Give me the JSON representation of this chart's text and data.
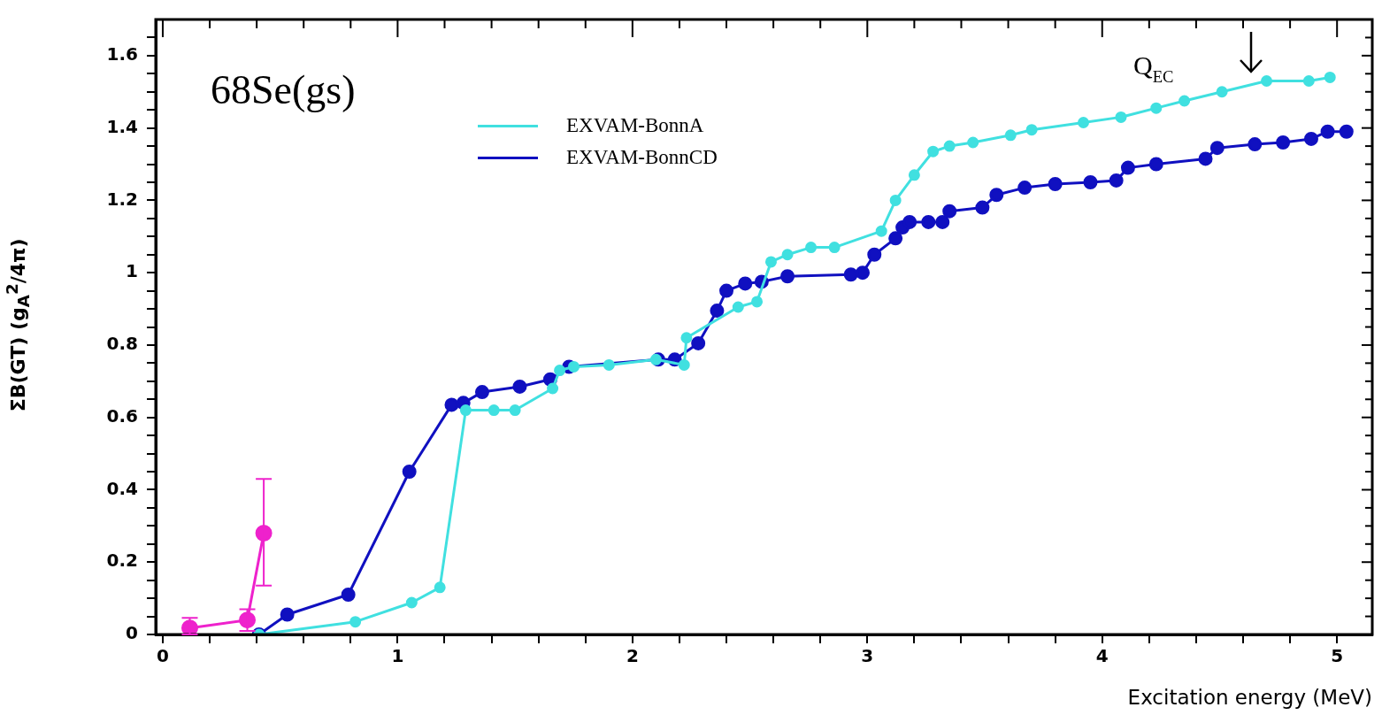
{
  "chart_data": {
    "type": "line",
    "xlabel": "Excitation energy (MeV)",
    "ylabel": "ΣB(GT) (g$_{A}$$^{2}$/4π)",
    "annotations": [
      "68Se(gs)",
      "Q$_{EC}$"
    ],
    "xlim": [
      -0.03,
      5.15
    ],
    "ylim": [
      0,
      1.7
    ],
    "xticks": [
      0,
      {
        "value": 0.2,
        "label": null
      },
      {
        "value": 0.4,
        "label": null
      },
      {
        "value": 0.6,
        "label": null
      },
      {
        "value": 0.8,
        "label": null
      },
      1,
      {
        "value": 1.2,
        "label": null
      },
      {
        "value": 1.4,
        "label": null
      },
      {
        "value": 1.6,
        "label": null
      },
      {
        "value": 1.8,
        "label": null
      },
      2,
      {
        "value": 2.2,
        "label": null
      },
      {
        "value": 2.4,
        "label": null
      },
      {
        "value": 2.6,
        "label": null
      },
      {
        "value": 2.8,
        "label": null
      },
      3,
      {
        "value": 3.2,
        "label": null
      },
      {
        "value": 3.4,
        "label": null
      },
      {
        "value": 3.6,
        "label": null
      },
      {
        "value": 3.8,
        "label": null
      },
      4,
      {
        "value": 4.2,
        "label": null
      },
      {
        "value": 4.4,
        "label": null
      },
      {
        "value": 4.6,
        "label": null
      },
      {
        "value": 4.8,
        "label": null
      },
      5
    ],
    "yticks": [
      0,
      {
        "value": 0.05,
        "label": null
      },
      {
        "value": 0.1,
        "label": null
      },
      {
        "value": 0.15,
        "label": null
      },
      0.2,
      {
        "value": 0.25,
        "label": null
      },
      {
        "value": 0.3,
        "label": null
      },
      {
        "value": 0.35,
        "label": null
      },
      0.4,
      {
        "value": 0.45,
        "label": null
      },
      {
        "value": 0.5,
        "label": null
      },
      {
        "value": 0.55,
        "label": null
      },
      0.6,
      {
        "value": 0.65,
        "label": null
      },
      {
        "value": 0.7,
        "label": null
      },
      {
        "value": 0.75,
        "label": null
      },
      0.8,
      {
        "value": 0.85,
        "label": null
      },
      {
        "value": 0.9,
        "label": null
      },
      {
        "value": 0.95,
        "label": null
      },
      1,
      {
        "value": 1.05,
        "label": null
      },
      {
        "value": 1.1,
        "label": null
      },
      {
        "value": 1.15,
        "label": null
      },
      1.2,
      {
        "value": 1.25,
        "label": null
      },
      {
        "value": 1.3,
        "label": null
      },
      {
        "value": 1.35,
        "label": null
      },
      1.4,
      {
        "value": 1.45,
        "label": null
      },
      {
        "value": 1.5,
        "label": null
      },
      {
        "value": 1.55,
        "label": null
      },
      1.6,
      {
        "value": 1.65,
        "label": null
      }
    ],
    "grid": false,
    "legend": "top",
    "marker": "circle",
    "line_style": "solid",
    "series": [
      {
        "name": "EXVAM-BonnA",
        "color": "#40e0e0",
        "x": [
          0.41,
          0.82,
          1.06,
          1.18,
          1.29,
          1.41,
          1.5,
          1.66,
          1.69,
          1.75,
          1.9,
          2.1,
          2.22,
          2.23,
          2.45,
          2.53,
          2.59,
          2.66,
          2.76,
          2.86,
          3.06,
          3.12,
          3.2,
          3.28,
          3.35,
          3.45,
          3.61,
          3.7,
          3.92,
          4.08,
          4.23,
          4.35,
          4.51,
          4.7,
          4.88,
          4.97
        ],
        "values": [
          0,
          0.035,
          0.088,
          0.13,
          0.62,
          0.62,
          0.62,
          0.68,
          0.73,
          0.74,
          0.745,
          0.76,
          0.745,
          0.82,
          0.905,
          0.92,
          1.03,
          1.05,
          1.07,
          1.07,
          1.115,
          1.2,
          1.27,
          1.335,
          1.35,
          1.36,
          1.38,
          1.395,
          1.415,
          1.43,
          1.455,
          1.475,
          1.5,
          1.53,
          1.53,
          1.54
        ]
      },
      {
        "name": "EXVAM-BonnCD",
        "color": "#1010c0",
        "x": [
          0.41,
          0.53,
          0.79,
          1.05,
          1.23,
          1.28,
          1.36,
          1.52,
          1.65,
          1.73,
          2.11,
          2.18,
          2.28,
          2.36,
          2.4,
          2.48,
          2.55,
          2.66,
          2.93,
          2.98,
          3.03,
          3.12,
          3.15,
          3.18,
          3.26,
          3.32,
          3.35,
          3.49,
          3.55,
          3.67,
          3.8,
          3.95,
          4.06,
          4.11,
          4.23,
          4.44,
          4.49,
          4.65,
          4.77,
          4.89,
          4.96,
          5.04
        ],
        "values": [
          0,
          0.055,
          0.11,
          0.45,
          0.635,
          0.64,
          0.67,
          0.685,
          0.705,
          0.74,
          0.76,
          0.76,
          0.805,
          0.895,
          0.95,
          0.97,
          0.975,
          0.99,
          0.995,
          1.0,
          1.05,
          1.095,
          1.125,
          1.14,
          1.14,
          1.14,
          1.17,
          1.18,
          1.215,
          1.235,
          1.245,
          1.25,
          1.255,
          1.29,
          1.3,
          1.315,
          1.345,
          1.355,
          1.36,
          1.37,
          1.39,
          1.39
        ]
      },
      {
        "color": "#ee22cc",
        "x": [
          0.115,
          0.36,
          0.43
        ],
        "values": [
          0.018,
          0.04,
          0.28
        ],
        "errors": [
          [
            0,
            0.046
          ],
          [
            0.01,
            0.07
          ],
          [
            0.135,
            0.43
          ]
        ]
      }
    ]
  }
}
